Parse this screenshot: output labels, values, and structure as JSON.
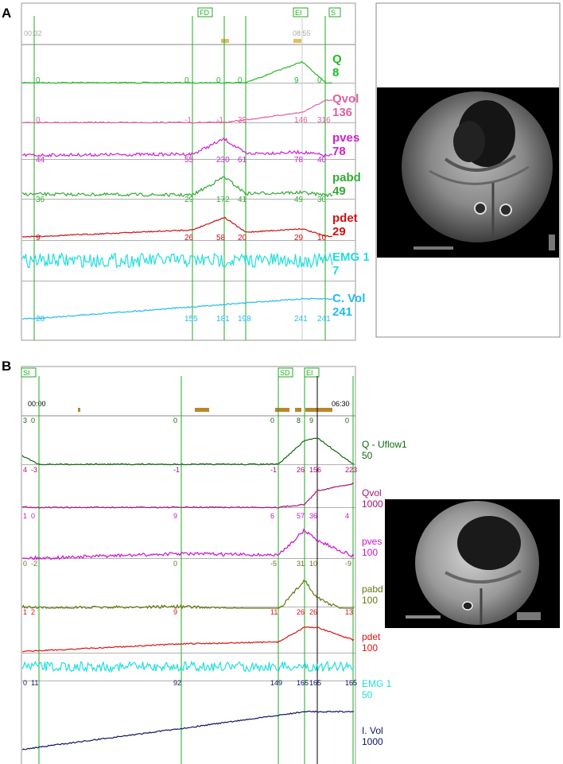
{
  "panels": [
    {
      "letter": "A",
      "time_start": "00:32",
      "time_end": "08:55",
      "markers": [
        "FD",
        "EI",
        "S"
      ],
      "channels": [
        {
          "name": "Q",
          "value": "8",
          "color": "#22bb22",
          "ticks": [
            "0",
            "0",
            "0",
            "0",
            "9",
            "0"
          ]
        },
        {
          "name": "Qvol",
          "value": "136",
          "color": "#e060a0",
          "ticks": [
            "0",
            "-1",
            "-1",
            "39",
            "146",
            "316"
          ]
        },
        {
          "name": "pves",
          "value": "78",
          "color": "#cc22cc",
          "ticks": [
            "44",
            "55",
            "230",
            "61",
            "78",
            "40"
          ]
        },
        {
          "name": "pabd",
          "value": "49",
          "color": "#33aa33",
          "ticks": [
            "36",
            "29",
            "172",
            "41",
            "49",
            "30"
          ]
        },
        {
          "name": "pdet",
          "value": "29",
          "color": "#cc1111",
          "ticks": [
            "9",
            "26",
            "58",
            "20",
            "29",
            "10"
          ]
        },
        {
          "name": "EMG 1",
          "value": "7",
          "color": "#22dddd",
          "ticks": []
        },
        {
          "name": "C. Vol",
          "value": "241",
          "color": "#22bbee",
          "ticks": [
            "28",
            "155",
            "181",
            "198",
            "241",
            "241"
          ]
        }
      ]
    },
    {
      "letter": "B",
      "time_start": "00:00",
      "time_end": "06:30",
      "markers": [
        "SI",
        "SD",
        "EI"
      ],
      "channels": [
        {
          "name": "Q - Uflow1",
          "value": "50",
          "color": "#116611",
          "ticks": [
            "3",
            "0",
            "0",
            "0",
            "8",
            "9",
            "0"
          ]
        },
        {
          "name": "Qvol",
          "value": "1000",
          "color": "#aa1177",
          "ticks": [
            "4",
            "-3",
            "-1",
            "-1",
            "26",
            "156",
            "223"
          ]
        },
        {
          "name": "pves",
          "value": "100",
          "color": "#cc11cc",
          "ticks": [
            "1",
            "0",
            "9",
            "6",
            "57",
            "36",
            "4"
          ]
        },
        {
          "name": "pabd",
          "value": "100",
          "color": "#667711",
          "ticks": [
            "0",
            "-2",
            "0",
            "-5",
            "31",
            "10",
            "-9"
          ]
        },
        {
          "name": "pdet",
          "value": "100",
          "color": "#dd1111",
          "ticks": [
            "1",
            "2",
            "9",
            "11",
            "26",
            "26",
            "13"
          ]
        },
        {
          "name": "EMG 1",
          "value": "50",
          "color": "#22dddd",
          "ticks": []
        },
        {
          "name": "I. Vol",
          "value": "1000",
          "color": "#111166",
          "ticks": [
            "0",
            "11",
            "92",
            "149",
            "165",
            "165",
            "165"
          ]
        }
      ]
    }
  ],
  "chart_data": [
    {
      "type": "line",
      "title": "",
      "xlabel": "",
      "ylabel": "",
      "grid": true,
      "series": [
        {
          "name": "Q",
          "x": [
            "0",
            "0",
            "0",
            "0",
            "9",
            "0"
          ],
          "values": [
            0,
            0,
            0,
            0,
            9,
            0
          ]
        },
        {
          "name": "Qvol",
          "values": [
            0,
            -1,
            -1,
            39,
            146,
            316
          ]
        },
        {
          "name": "pves",
          "values": [
            44,
            55,
            230,
            61,
            78,
            40
          ]
        },
        {
          "name": "pabd",
          "values": [
            36,
            29,
            172,
            41,
            49,
            30
          ]
        },
        {
          "name": "pdet",
          "values": [
            9,
            26,
            58,
            20,
            29,
            10
          ]
        },
        {
          "name": "EMG 1",
          "values": []
        },
        {
          "name": "C. Vol",
          "values": [
            28,
            155,
            181,
            198,
            241,
            241
          ]
        }
      ]
    },
    {
      "type": "line",
      "title": "",
      "xlabel": "",
      "ylabel": "",
      "grid": true,
      "series": [
        {
          "name": "Q - Uflow1",
          "values": [
            3,
            0,
            0,
            0,
            8,
            9,
            0
          ]
        },
        {
          "name": "Qvol",
          "values": [
            4,
            -3,
            -1,
            -1,
            26,
            156,
            223
          ]
        },
        {
          "name": "pves",
          "values": [
            1,
            0,
            9,
            6,
            57,
            36,
            4
          ]
        },
        {
          "name": "pabd",
          "values": [
            0,
            -2,
            0,
            -5,
            31,
            10,
            -9
          ]
        },
        {
          "name": "pdet",
          "values": [
            1,
            2,
            9,
            11,
            26,
            26,
            13
          ]
        },
        {
          "name": "EMG 1",
          "values": []
        },
        {
          "name": "I. Vol",
          "values": [
            0,
            11,
            92,
            149,
            165,
            165,
            165
          ]
        }
      ]
    }
  ]
}
